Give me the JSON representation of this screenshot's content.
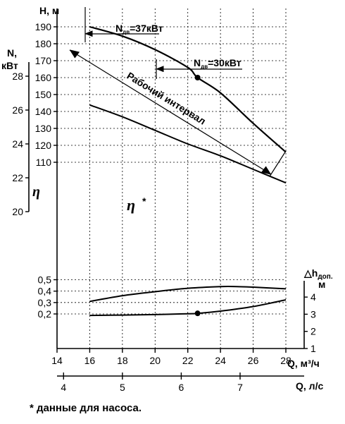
{
  "chart_data": {
    "type": "line",
    "x_axis_q_m3h": {
      "label": "Q, м³/ч",
      "ticks": [
        "14",
        "16",
        "18",
        "20",
        "22",
        "24",
        "26",
        "28"
      ],
      "range": [
        14,
        28
      ]
    },
    "x_axis_q_ls": {
      "label": "Q, л/с",
      "ticks": [
        "4",
        "5",
        "6",
        "7"
      ]
    },
    "y_axis_H": {
      "label": "H, м",
      "ticks": [
        "110",
        "120",
        "130",
        "140",
        "150",
        "160",
        "170",
        "180",
        "190"
      ],
      "range": [
        110,
        190
      ]
    },
    "y_axis_N": {
      "label": "N, кВт",
      "ticks": [
        "20",
        "22",
        "24",
        "26",
        "28"
      ],
      "range": [
        20,
        28
      ]
    },
    "y_axis_eta": {
      "label": "η",
      "ticks": [
        "0,2",
        "0,3",
        "0,4",
        "0,5"
      ],
      "range": [
        0.2,
        0.5
      ]
    },
    "y_axis_npsh": {
      "label": "△hдоп., м",
      "ticks": [
        "1",
        "2",
        "3",
        "4"
      ],
      "range": [
        1,
        4
      ]
    },
    "series": [
      {
        "key": "H",
        "axis": "H",
        "x": [
          16,
          18,
          20,
          22,
          22.6,
          24,
          26,
          28
        ],
        "values": [
          190,
          184.5,
          176.5,
          166,
          160,
          151,
          133,
          116
        ]
      },
      {
        "key": "N",
        "axis": "N",
        "x": [
          16,
          18,
          20,
          22,
          24,
          26,
          28
        ],
        "values": [
          26.3,
          25.6,
          24.8,
          24.0,
          23.3,
          22.5,
          21.7
        ]
      },
      {
        "key": "eta",
        "axis": "eta",
        "x": [
          16,
          18,
          20,
          22,
          24,
          25,
          26,
          28
        ],
        "values": [
          0.31,
          0.36,
          0.395,
          0.425,
          0.44,
          0.44,
          0.435,
          0.42
        ]
      },
      {
        "key": "npsh",
        "axis": "npsh",
        "x": [
          16,
          18,
          20,
          22,
          22.6,
          24,
          26,
          28
        ],
        "values": [
          2.93,
          2.95,
          2.98,
          3.03,
          3.05,
          3.18,
          3.45,
          3.84
        ]
      }
    ],
    "markers": [
      {
        "axis": "H",
        "x": 22.6,
        "y": 160
      },
      {
        "axis": "npsh",
        "x": 22.6,
        "y": 3.05
      }
    ],
    "annotations": {
      "power_37_prefix": "N",
      "power_37_sub": "дв",
      "power_37_value": "=37кВт",
      "power_30_prefix": "N",
      "power_30_sub": "дв",
      "power_30_value": "=30кВт",
      "working_range": "Рабочий интервал",
      "eta_star": "η",
      "eta_star_mark": "*"
    }
  },
  "footnote": "* данные для насоса."
}
